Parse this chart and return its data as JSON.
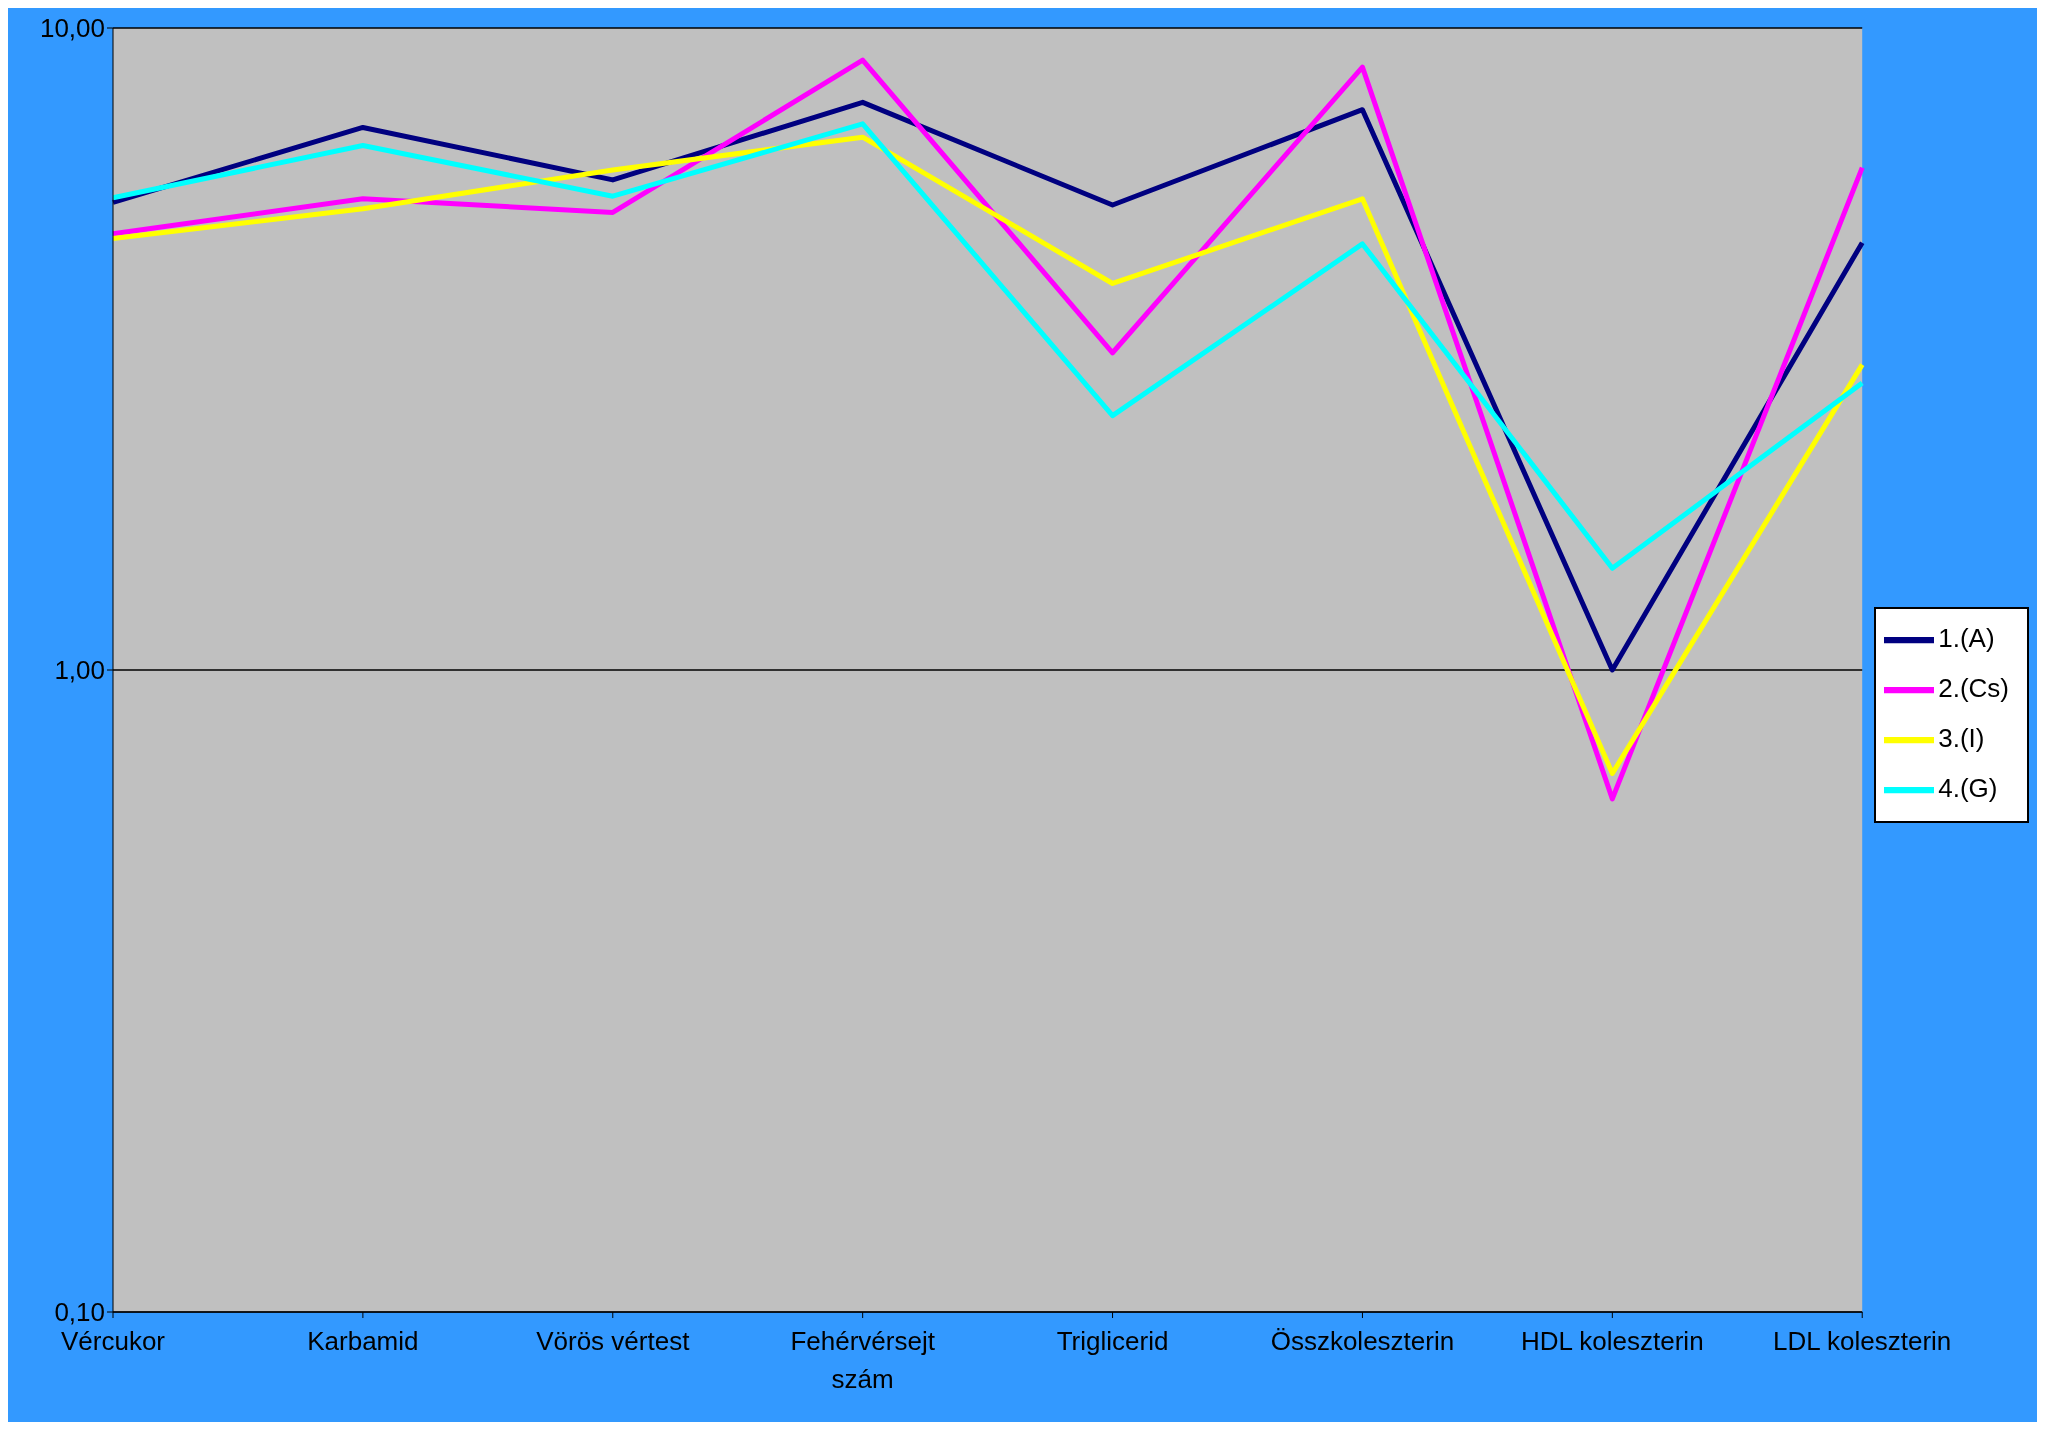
{
  "chart_data": {
    "type": "line",
    "categories": [
      "Vércukor",
      "Karbamid",
      "Vörös vértest",
      "Fehérvérsejt szám",
      "Triglicerid",
      "Összkoleszterin",
      "HDL koleszterin",
      "LDL koleszterin"
    ],
    "series": [
      {
        "name": "1.(A)",
        "color": "#000080",
        "values": [
          5.35,
          7.0,
          5.8,
          7.66,
          5.3,
          7.46,
          1.0,
          4.63
        ]
      },
      {
        "name": "2.(Cs)",
        "color": "#ff00ff",
        "values": [
          4.78,
          5.42,
          5.16,
          8.91,
          3.12,
          8.69,
          0.63,
          6.06
        ]
      },
      {
        "name": "3.(I)",
        "color": "#ffff00",
        "values": [
          4.7,
          5.23,
          6.01,
          6.76,
          4.0,
          5.42,
          0.69,
          2.99
        ]
      },
      {
        "name": "4.(G)",
        "color": "#00ffff",
        "values": [
          5.44,
          6.56,
          5.47,
          7.09,
          2.49,
          4.61,
          1.44,
          2.8
        ]
      }
    ],
    "log": "y",
    "ylim": [
      0.1,
      10
    ],
    "yticks": [
      {
        "value": 0.1,
        "label": "0,10"
      },
      {
        "value": 1,
        "label": "1,00"
      },
      {
        "value": 10,
        "label": "10,00"
      }
    ],
    "grid": "y",
    "legend": "right",
    "marker": "none",
    "line_style": "solid"
  }
}
